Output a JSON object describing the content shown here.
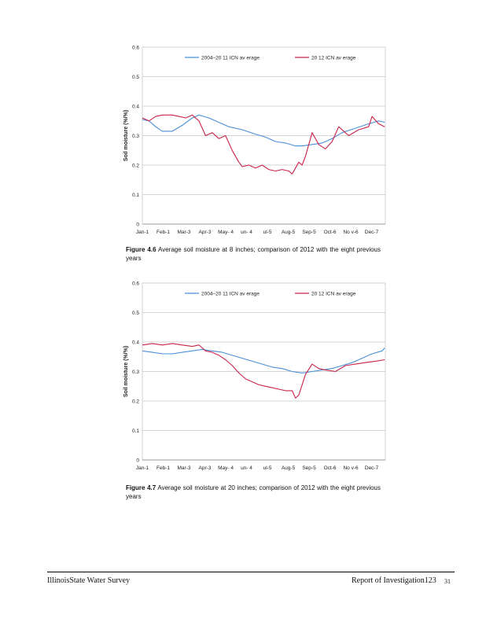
{
  "page": {
    "footer_left": "IllinoisState Water Survey",
    "footer_right": "Report of Investigation123",
    "page_number": "31"
  },
  "figures": [
    {
      "caption_label": "Figure 4.6",
      "caption_text": "Average soil moisture at 8 inches; comparison of 2012 with the eight previous years"
    },
    {
      "caption_label": "Figure 4.7",
      "caption_text": "Average soil moisture at 20 inches; comparison of 2012 with the eight previous years"
    }
  ],
  "chart_data": [
    {
      "type": "line",
      "title": "",
      "xlabel": "",
      "ylabel": "Soil moisture (%/%)",
      "ylim": [
        0,
        0.6
      ],
      "yticks": [
        "0",
        "0.1",
        "0.2",
        "0.3",
        "0.4",
        "0.5",
        "0.6"
      ],
      "categories": [
        "Jan-1",
        "Feb-1",
        "Mar-3",
        "Apr-3",
        "May- 4",
        "un- 4",
        "ul-5",
        "Aug-5",
        "Sep-5",
        "Oct-6",
        "No v-6",
        "Dec-7"
      ],
      "legend": "top",
      "grid": true,
      "series": [
        {
          "name": "2004–20 11 ICN av erage",
          "color": "#4a8fd8",
          "x": [
            0,
            10,
            20,
            30,
            45,
            60,
            75,
            85,
            100,
            115,
            130,
            150,
            170,
            185,
            200,
            215,
            230,
            240,
            255,
            270,
            285,
            300,
            320,
            340,
            355,
            364
          ],
          "values": [
            0.355,
            0.35,
            0.33,
            0.315,
            0.315,
            0.335,
            0.36,
            0.37,
            0.36,
            0.345,
            0.33,
            0.32,
            0.305,
            0.295,
            0.28,
            0.275,
            0.265,
            0.265,
            0.27,
            0.275,
            0.29,
            0.31,
            0.325,
            0.34,
            0.35,
            0.345
          ]
        },
        {
          "name": "20 12 ICN av erage",
          "color": "#c8234a",
          "x": [
            0,
            10,
            20,
            30,
            45,
            55,
            65,
            75,
            85,
            95,
            105,
            115,
            125,
            135,
            145,
            150,
            160,
            170,
            180,
            190,
            200,
            210,
            220,
            225,
            235,
            240,
            245,
            255,
            265,
            275,
            285,
            295,
            310,
            325,
            340,
            345,
            355,
            364
          ],
          "values": [
            0.36,
            0.35,
            0.365,
            0.37,
            0.37,
            0.365,
            0.36,
            0.37,
            0.35,
            0.3,
            0.31,
            0.29,
            0.3,
            0.25,
            0.21,
            0.195,
            0.2,
            0.19,
            0.2,
            0.185,
            0.18,
            0.185,
            0.18,
            0.17,
            0.21,
            0.2,
            0.23,
            0.31,
            0.27,
            0.255,
            0.28,
            0.33,
            0.3,
            0.32,
            0.33,
            0.365,
            0.34,
            0.33
          ]
        }
      ]
    },
    {
      "type": "line",
      "title": "",
      "xlabel": "",
      "ylabel": "Soil moisture (%/%)",
      "ylim": [
        0,
        0.6
      ],
      "yticks": [
        "0",
        "0.1",
        "0.2",
        "0.3",
        "0.4",
        "0.5",
        "0.6"
      ],
      "categories": [
        "Jan-1",
        "Feb-1",
        "Mar-3",
        "Apr-3",
        "May- 4",
        "un- 4",
        "ul-5",
        "Aug-5",
        "Sep-5",
        "Oct-6",
        "No v-6",
        "Dec-7"
      ],
      "legend": "top",
      "grid": true,
      "series": [
        {
          "name": "2004–20 11 ICN av erage",
          "color": "#4a8fd8",
          "x": [
            0,
            15,
            30,
            45,
            60,
            75,
            90,
            105,
            120,
            135,
            150,
            165,
            180,
            195,
            210,
            225,
            240,
            255,
            270,
            285,
            300,
            315,
            330,
            345,
            360,
            364
          ],
          "values": [
            0.37,
            0.365,
            0.36,
            0.36,
            0.365,
            0.37,
            0.375,
            0.37,
            0.365,
            0.355,
            0.345,
            0.335,
            0.325,
            0.315,
            0.31,
            0.3,
            0.295,
            0.3,
            0.305,
            0.31,
            0.32,
            0.33,
            0.345,
            0.36,
            0.37,
            0.38
          ]
        },
        {
          "name": "20 12 ICN av erage",
          "color": "#c8234a",
          "x": [
            0,
            15,
            30,
            45,
            60,
            75,
            85,
            95,
            105,
            115,
            125,
            135,
            145,
            155,
            165,
            175,
            185,
            195,
            205,
            215,
            225,
            230,
            235,
            240,
            245,
            255,
            265,
            275,
            290,
            305,
            320,
            335,
            350,
            364
          ],
          "values": [
            0.39,
            0.395,
            0.39,
            0.395,
            0.39,
            0.385,
            0.39,
            0.37,
            0.365,
            0.355,
            0.34,
            0.32,
            0.295,
            0.275,
            0.265,
            0.255,
            0.25,
            0.245,
            0.24,
            0.235,
            0.235,
            0.21,
            0.22,
            0.255,
            0.29,
            0.325,
            0.31,
            0.305,
            0.3,
            0.32,
            0.325,
            0.33,
            0.335,
            0.34
          ]
        }
      ]
    }
  ]
}
